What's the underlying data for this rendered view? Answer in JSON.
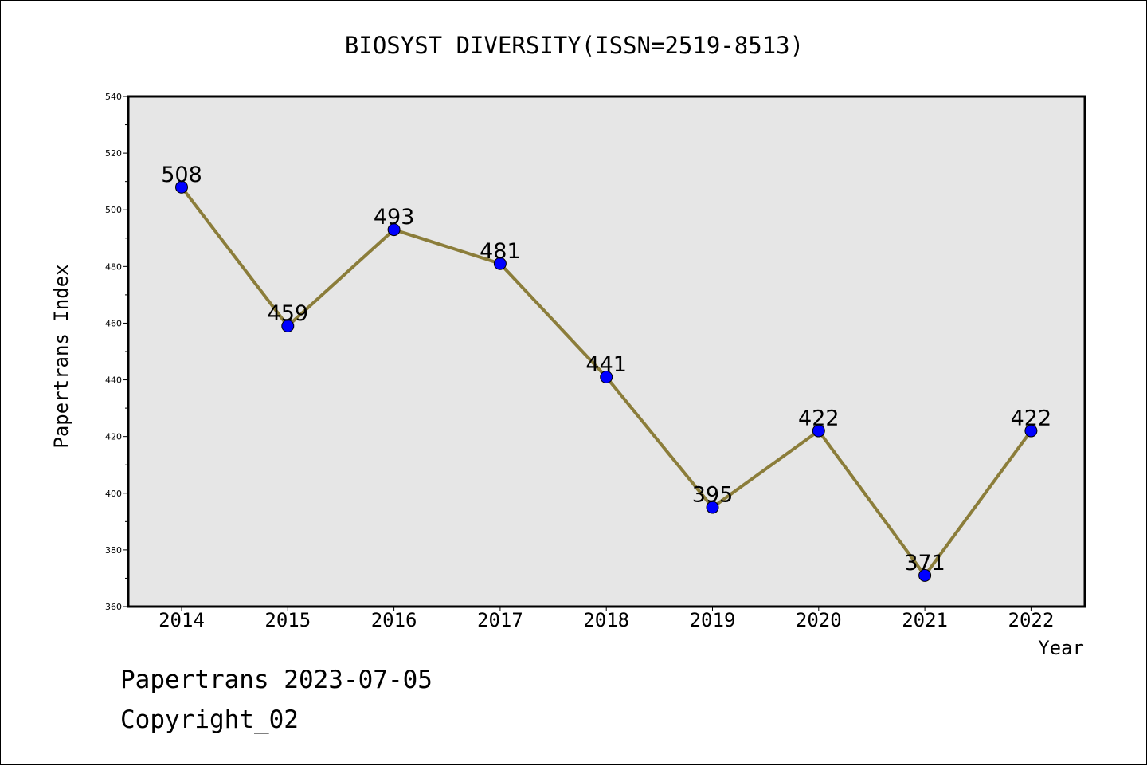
{
  "chart_data": {
    "type": "line",
    "title": "BIOSYST DIVERSITY(ISSN=2519-8513)",
    "xlabel": "Year",
    "ylabel": "Papertrans Index",
    "x": [
      "2014",
      "2015",
      "2016",
      "2017",
      "2018",
      "2019",
      "2020",
      "2021",
      "2022"
    ],
    "series": [
      {
        "values": [
          508,
          459,
          493,
          481,
          441,
          395,
          422,
          371,
          422
        ]
      }
    ],
    "data_labels": [
      "508",
      "459",
      "493",
      "481",
      "441",
      "395",
      "422",
      "371",
      "422"
    ],
    "ylim": [
      360,
      540
    ],
    "y_ticks": [
      "360",
      "380",
      "400",
      "420",
      "440",
      "460",
      "480",
      "500",
      "520",
      "540"
    ],
    "grid": false,
    "legend": "none",
    "colors": {
      "line": "#8b7d3a",
      "marker": "#0000ff",
      "plot_background": "#e6e6e6"
    }
  },
  "footer": {
    "line1": "Papertrans 2023-07-05",
    "line2": "Copyright_02"
  }
}
